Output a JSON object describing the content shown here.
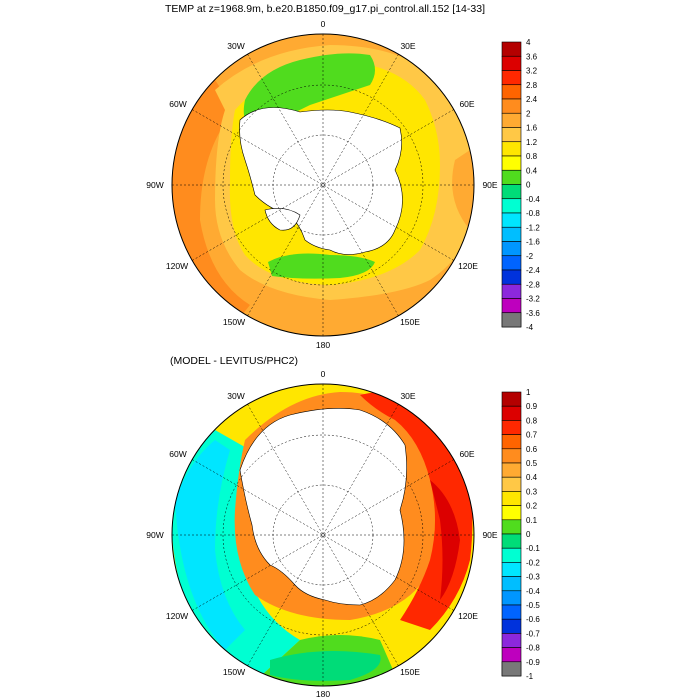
{
  "top_panel": {
    "title": "TEMP at z=1968.9m, b.e20.B1850.f09_g17.pi_control.all.152 [14-33]",
    "colorbar_labels": [
      "4",
      "3.6",
      "3.2",
      "2.8",
      "2.4",
      "2",
      "1.6",
      "1.2",
      "0.8",
      "0.4",
      "0",
      "-0.4",
      "-0.8",
      "-1.2",
      "-1.6",
      "-2",
      "-2.4",
      "-2.8",
      "-3.2",
      "-3.6",
      "-4"
    ],
    "colorbar_colors": [
      "#b40000",
      "#dc0000",
      "#ff2800",
      "#ff6400",
      "#ff8c1e",
      "#ffaa32",
      "#ffc846",
      "#ffe600",
      "#ffff00",
      "#50dc1e",
      "#00dc78",
      "#00ffd2",
      "#00e6ff",
      "#00beff",
      "#0096ff",
      "#0064ff",
      "#0032dc",
      "#8c28dc",
      "#be00be",
      "#d2d2d2",
      "#787878"
    ],
    "background_field": [
      {
        "lon": 0,
        "value": 1.9
      },
      {
        "lon": 90,
        "value": 1.7
      },
      {
        "lon": 180,
        "value": 2.2
      },
      {
        "lon": 270,
        "value": 2.6
      }
    ]
  },
  "bottom_panel": {
    "title": "(MODEL - LEVITUS/PHC2)",
    "colorbar_labels": [
      "1",
      "0.9",
      "0.8",
      "0.7",
      "0.6",
      "0.5",
      "0.4",
      "0.3",
      "0.2",
      "0.1",
      "0",
      "-0.1",
      "-0.2",
      "-0.3",
      "-0.4",
      "-0.5",
      "-0.6",
      "-0.7",
      "-0.8",
      "-0.9",
      "-1"
    ],
    "colorbar_colors": [
      "#b40000",
      "#dc0000",
      "#ff2800",
      "#ff6400",
      "#ff8c1e",
      "#ffaa32",
      "#ffc846",
      "#ffe600",
      "#ffff00",
      "#50dc1e",
      "#00dc78",
      "#00ffd2",
      "#00e6ff",
      "#00beff",
      "#0096ff",
      "#0064ff",
      "#0032dc",
      "#8c28dc",
      "#be00be",
      "#d2d2d2",
      "#787878"
    ]
  },
  "lon_labels": [
    "0",
    "30E",
    "60E",
    "90E",
    "120E",
    "150E",
    "180",
    "150W",
    "120W",
    "90W",
    "60W",
    "30W"
  ],
  "land_color": "#ffffff",
  "coast_color": "#000000"
}
